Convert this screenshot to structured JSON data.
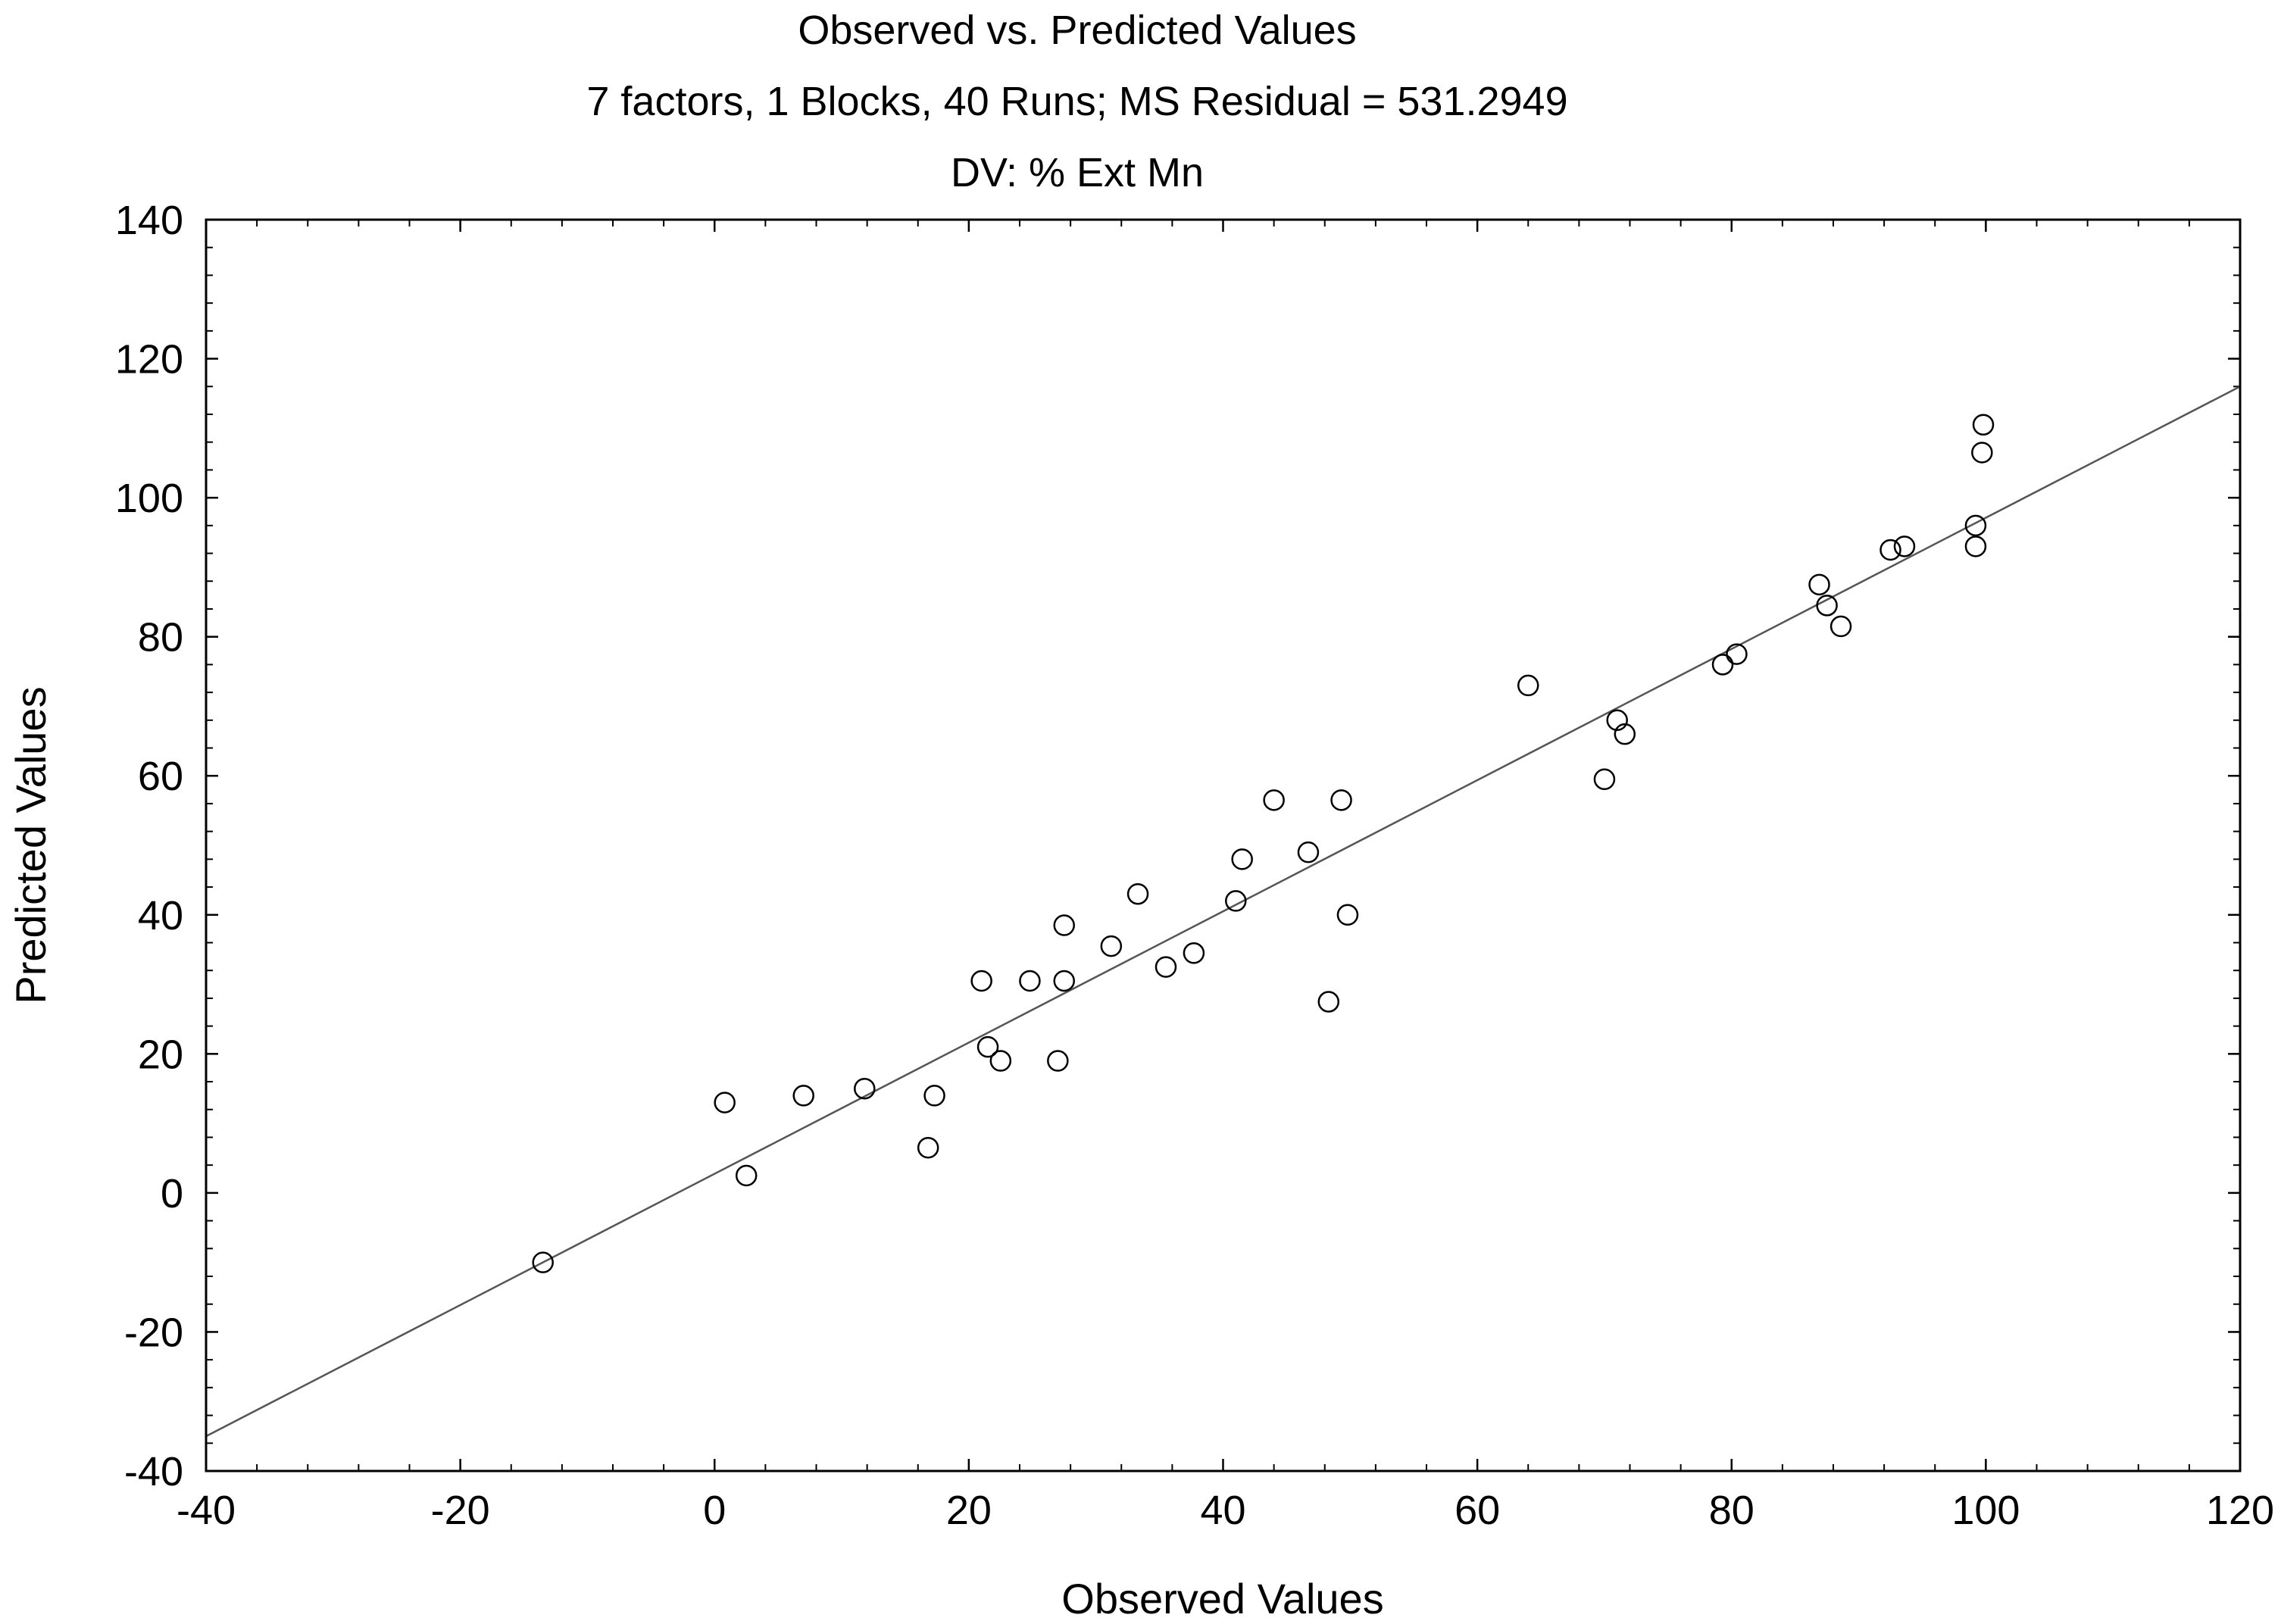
{
  "chart_data": {
    "type": "scatter",
    "title": "Observed vs. Predicted Values",
    "subtitle": "7 factors, 1 Blocks, 40 Runs; MS Residual = 531.2949",
    "subtitle2": "DV: % Ext Mn",
    "xlabel": "Observed Values",
    "ylabel": "Predicted Values",
    "xlim": [
      -40,
      120
    ],
    "ylim": [
      -40,
      140
    ],
    "x_ticks": [
      "-40",
      "-20",
      "0",
      "20",
      "40",
      "60",
      "80",
      "100",
      "120"
    ],
    "y_ticks": [
      "-40",
      "-20",
      "0",
      "20",
      "40",
      "60",
      "80",
      "100",
      "120",
      "140"
    ],
    "grid": false,
    "fit_line": {
      "x": [
        -40,
        120
      ],
      "y": [
        -35,
        116
      ]
    },
    "points": [
      {
        "x": -13.5,
        "y": -10
      },
      {
        "x": 0.8,
        "y": 13
      },
      {
        "x": 2.5,
        "y": 2.5
      },
      {
        "x": 7,
        "y": 14
      },
      {
        "x": 11.8,
        "y": 15
      },
      {
        "x": 16.8,
        "y": 6.5
      },
      {
        "x": 17.3,
        "y": 14
      },
      {
        "x": 21,
        "y": 30.5
      },
      {
        "x": 21.5,
        "y": 21
      },
      {
        "x": 22.5,
        "y": 19
      },
      {
        "x": 24.8,
        "y": 30.5
      },
      {
        "x": 27,
        "y": 19
      },
      {
        "x": 27.5,
        "y": 38.5
      },
      {
        "x": 27.5,
        "y": 30.5
      },
      {
        "x": 31.2,
        "y": 35.5
      },
      {
        "x": 33.3,
        "y": 43
      },
      {
        "x": 35.5,
        "y": 32.5
      },
      {
        "x": 37.7,
        "y": 34.5
      },
      {
        "x": 41,
        "y": 42
      },
      {
        "x": 41.5,
        "y": 48
      },
      {
        "x": 44,
        "y": 56.5
      },
      {
        "x": 46.7,
        "y": 49
      },
      {
        "x": 48.3,
        "y": 27.5
      },
      {
        "x": 49.3,
        "y": 56.5
      },
      {
        "x": 49.8,
        "y": 40
      },
      {
        "x": 64,
        "y": 73
      },
      {
        "x": 70,
        "y": 59.5
      },
      {
        "x": 71,
        "y": 68
      },
      {
        "x": 71.6,
        "y": 66
      },
      {
        "x": 79.3,
        "y": 76
      },
      {
        "x": 80.4,
        "y": 77.5
      },
      {
        "x": 86.9,
        "y": 87.5
      },
      {
        "x": 87.5,
        "y": 84.5
      },
      {
        "x": 88.6,
        "y": 81.5
      },
      {
        "x": 92.5,
        "y": 92.5
      },
      {
        "x": 93.6,
        "y": 93
      },
      {
        "x": 99.2,
        "y": 96
      },
      {
        "x": 99.2,
        "y": 93
      },
      {
        "x": 99.7,
        "y": 106.5
      },
      {
        "x": 99.8,
        "y": 110.5
      }
    ]
  }
}
